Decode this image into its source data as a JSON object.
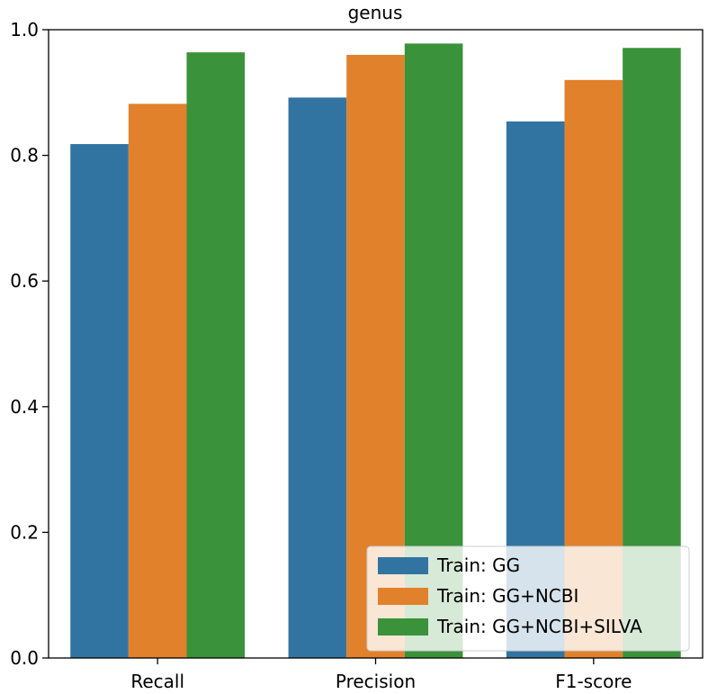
{
  "chart_data": {
    "type": "bar",
    "title": "genus",
    "xlabel": "",
    "ylabel": "",
    "categories": [
      "Recall",
      "Precision",
      "F1-score"
    ],
    "series": [
      {
        "name": "Train: GG",
        "color": "#3274a1",
        "values": [
          0.818,
          0.892,
          0.854
        ]
      },
      {
        "name": "Train: GG+NCBI",
        "color": "#e1812c",
        "values": [
          0.882,
          0.96,
          0.92
        ]
      },
      {
        "name": "Train: GG+NCBI+SILVA",
        "color": "#3a923a",
        "values": [
          0.964,
          0.978,
          0.971
        ]
      }
    ],
    "ylim": [
      0,
      1.0
    ],
    "yticks": [
      0.0,
      0.2,
      0.4,
      0.6,
      0.8,
      1.0
    ],
    "ytick_labels": [
      "0.0",
      "0.2",
      "0.4",
      "0.6",
      "0.8",
      "1.0"
    ],
    "grid": false,
    "legend_position": "lower-right"
  }
}
